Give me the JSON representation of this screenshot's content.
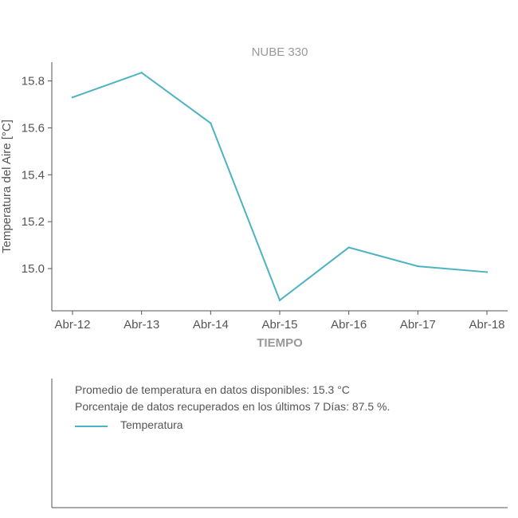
{
  "chart_data": {
    "type": "line",
    "title": "NUBE 330",
    "xlabel": "TIEMPO",
    "ylabel": "Temperatura del Aire [°C]",
    "categories": [
      "Abr-12",
      "Abr-13",
      "Abr-14",
      "Abr-15",
      "Abr-16",
      "Abr-17",
      "Abr-18"
    ],
    "series": [
      {
        "name": "Temperatura",
        "values": [
          15.73,
          15.835,
          15.62,
          14.865,
          15.09,
          15.01,
          14.985
        ],
        "color": "#4db3c2"
      }
    ],
    "yticks": [
      "15.0",
      "15.2",
      "15.4",
      "15.6",
      "15.8"
    ],
    "ylim": [
      14.82,
      15.88
    ],
    "grid": false,
    "legend": "bottom-panel"
  },
  "annotations": {
    "avg": "Promedio de temperatura en datos disponibles: 15.3 °C",
    "pct": "Porcentaje de datos recuperados en los últimos 7 Días: 87.5 %."
  },
  "legend": {
    "label": "Temperatura"
  }
}
